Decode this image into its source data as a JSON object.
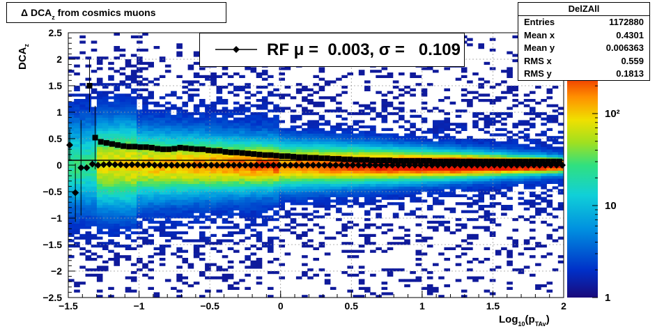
{
  "title": {
    "main": "Δ DCA",
    "sub": "z",
    "rest": " from cosmics muons"
  },
  "stats": {
    "name": "DelZAll",
    "rows": [
      {
        "label": "Entries",
        "value": "1172880"
      },
      {
        "label": "Mean x",
        "value": "0.4301"
      },
      {
        "label": "Mean y",
        "value": "0.006363"
      },
      {
        "label": "RMS x",
        "value": "0.559"
      },
      {
        "label": "RMS y",
        "value": "0.1813"
      }
    ]
  },
  "legend": {
    "text": "RF μ =  0.003, σ =   0.109"
  },
  "axes": {
    "xlabel": {
      "pre": "Log",
      "sub1": "10",
      "mid": "(p",
      "sub2": "TAv",
      "post": ")"
    },
    "ylabel": {
      "main": "DCA",
      "sub": "z"
    }
  },
  "chart_data": {
    "type": "heatmap",
    "xlim": [
      -1.5,
      2
    ],
    "ylim": [
      -2.5,
      2.5
    ],
    "x_ticks": [
      "−1.5",
      "−1",
      "−0.5",
      "0",
      "0.5",
      "1",
      "1.5",
      "2"
    ],
    "y_ticks": [
      "2.5",
      "2",
      "1.5",
      "1",
      "0.5",
      "0",
      "−0.5",
      "−1",
      "−1.5",
      "−2",
      "−2.5"
    ],
    "colorbar": {
      "scale": "log",
      "range": [
        1,
        300
      ],
      "ticks": [
        "1",
        "10",
        "10²"
      ]
    },
    "grid": true,
    "series": [
      {
        "marker": "square",
        "x": [
          -1.35,
          -1.31,
          -1.27,
          -1.23,
          -1.19,
          -1.15,
          -1.11,
          -1.07,
          -1.03,
          -0.99,
          -0.95,
          -0.91,
          -0.87,
          -0.83,
          -0.79,
          -0.75,
          -0.71,
          -0.67,
          -0.63,
          -0.59,
          -0.55,
          -0.51,
          -0.47,
          -0.43,
          -0.39,
          -0.35,
          -0.31,
          -0.27,
          -0.23,
          -0.19,
          -0.15,
          -0.11,
          -0.07,
          -0.03,
          0.01,
          0.05,
          0.09,
          0.13,
          0.17,
          0.21,
          0.25,
          0.29,
          0.33,
          0.37,
          0.41,
          0.45,
          0.49,
          0.53,
          0.57,
          0.61,
          0.65,
          0.69,
          0.73,
          0.77,
          0.81,
          0.85,
          0.89,
          0.93,
          0.97,
          1.01,
          1.05,
          1.09,
          1.13,
          1.17,
          1.21,
          1.25,
          1.29,
          1.33,
          1.37,
          1.41,
          1.45,
          1.49,
          1.53,
          1.57,
          1.61,
          1.65,
          1.69,
          1.73,
          1.77,
          1.81,
          1.85,
          1.89,
          1.93,
          1.97
        ],
        "y": [
          1.5,
          0.52,
          0.44,
          0.42,
          0.4,
          0.38,
          0.36,
          0.35,
          0.35,
          0.34,
          0.34,
          0.33,
          0.31,
          0.3,
          0.3,
          0.31,
          0.33,
          0.32,
          0.31,
          0.3,
          0.3,
          0.28,
          0.27,
          0.27,
          0.25,
          0.24,
          0.24,
          0.23,
          0.22,
          0.21,
          0.2,
          0.19,
          0.19,
          0.18,
          0.17,
          0.17,
          0.16,
          0.15,
          0.15,
          0.14,
          0.14,
          0.13,
          0.13,
          0.12,
          0.12,
          0.11,
          0.11,
          0.1,
          0.1,
          0.1,
          0.09,
          0.09,
          0.09,
          0.09,
          0.08,
          0.08,
          0.08,
          0.08,
          0.08,
          0.08,
          0.08,
          0.07,
          0.07,
          0.07,
          0.07,
          0.07,
          0.07,
          0.07,
          0.07,
          0.07,
          0.07,
          0.07,
          0.07,
          0.07,
          0.07,
          0.07,
          0.07,
          0.07,
          0.07,
          0.07,
          0.07,
          0.07,
          0.07,
          0.07
        ]
      },
      {
        "marker": "diamond",
        "x": [
          -1.49,
          -1.45,
          -1.41,
          -1.37,
          -1.33,
          -1.29,
          -1.25,
          -1.21,
          -1.17,
          -1.13,
          -1.09,
          -1.05,
          -1.01,
          -0.97,
          -0.93,
          -0.89,
          -0.85,
          -0.81,
          -0.77,
          -0.73,
          -0.69,
          -0.65,
          -0.61,
          -0.57,
          -0.53,
          -0.49,
          -0.45,
          -0.41,
          -0.37,
          -0.33,
          -0.29,
          -0.25,
          -0.21,
          -0.17,
          -0.13,
          -0.09,
          -0.05,
          -0.01,
          0.03,
          0.07,
          0.11,
          0.15,
          0.19,
          0.23,
          0.27,
          0.31,
          0.35,
          0.39,
          0.43,
          0.47,
          0.51,
          0.55,
          0.59,
          0.63,
          0.67,
          0.71,
          0.75,
          0.79,
          0.83,
          0.87,
          0.91,
          0.95,
          0.99,
          1.03,
          1.07,
          1.11,
          1.15,
          1.19,
          1.23,
          1.27,
          1.31,
          1.35,
          1.39,
          1.43,
          1.47,
          1.51,
          1.55,
          1.59,
          1.63,
          1.67,
          1.71,
          1.75,
          1.79,
          1.83,
          1.87,
          1.91,
          1.95,
          1.99
        ],
        "y": [
          0.38,
          -0.52,
          -0.05,
          -0.05,
          0.02,
          0.0,
          0.01,
          0.02,
          0.01,
          0.01,
          0.0,
          0.01,
          0.01,
          0.0,
          0.01,
          0.0,
          0.0,
          0.0,
          0.0,
          0.0,
          0.0,
          0.0,
          0.0,
          0.0,
          0.0,
          0.0,
          0.0,
          0.0,
          0.0,
          0.0,
          0.0,
          0.0,
          0.0,
          0.0,
          0.0,
          0.0,
          0.0,
          0.0,
          0.0,
          0.0,
          0.0,
          0.0,
          0.0,
          0.0,
          0.0,
          0.0,
          0.0,
          0.0,
          0.0,
          0.0,
          0.0,
          0.0,
          0.0,
          0.0,
          0.0,
          0.0,
          0.0,
          0.0,
          0.0,
          0.0,
          0.0,
          0.0,
          0.0,
          0.0,
          0.0,
          0.0,
          0.0,
          0.0,
          0.0,
          0.0,
          0.0,
          0.0,
          0.0,
          0.0,
          0.0,
          0.0,
          0.0,
          0.0,
          0.0,
          0.0,
          0.0,
          0.0,
          0.0,
          0.0,
          0.0,
          0.0,
          0.0,
          0.0
        ]
      }
    ]
  }
}
